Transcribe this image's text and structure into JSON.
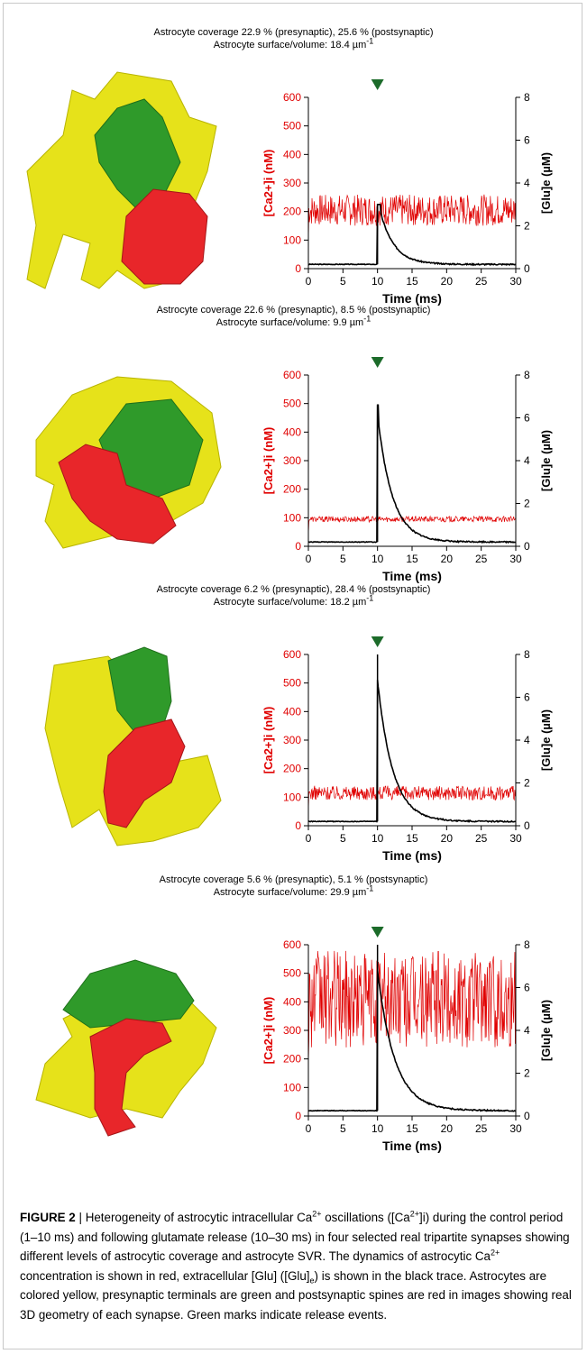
{
  "panels": [
    {
      "title_line1": "Astrocyte coverage 22.9 % (presynaptic), 25.6 % (postsynaptic)",
      "title_line2_prefix": "Astrocyte surface/volume: 18.4 ",
      "title_line2_unit": "µm",
      "title_line2_exp": "-1",
      "chart_data": {
        "type": "line",
        "xlabel": "Time (ms)",
        "ylabel_left": "[Ca2+]i (nM)",
        "ylabel_right": "[Glu]e (µM)",
        "xlim": [
          0,
          30
        ],
        "ylim_left": [
          0,
          600
        ],
        "ylim_right": [
          0,
          8
        ],
        "xticks": [
          "0",
          "5",
          "10",
          "15",
          "20",
          "25",
          "30"
        ],
        "yticks_left": [
          "0",
          "100",
          "200",
          "300",
          "400",
          "500",
          "600"
        ],
        "yticks_right": [
          "0",
          "2",
          "4",
          "6",
          "8"
        ],
        "release_event_ms": 10,
        "series": [
          {
            "axis": "left",
            "color": "#e00000",
            "baseline_nM": 205,
            "noise_amplitude_nM": 55
          },
          {
            "axis": "right",
            "color": "#000000",
            "baseline_uM": 0.2,
            "peak_uM": 3.0,
            "peak_time_ms": 10.5,
            "decay_to_baseline_ms": 17
          }
        ]
      }
    },
    {
      "title_line1": "Astrocyte coverage 22.6 % (presynaptic), 8.5 % (postsynaptic)",
      "title_line2_prefix": "Astrocyte surface/volume: 9.9 ",
      "title_line2_unit": "µm",
      "title_line2_exp": "-1",
      "chart_data": {
        "type": "line",
        "xlabel": "Time (ms)",
        "ylabel_left": "[Ca2+]i (nM)",
        "ylabel_right": "[Glu]e (µM)",
        "xlim": [
          0,
          30
        ],
        "ylim_left": [
          0,
          600
        ],
        "ylim_right": [
          0,
          8
        ],
        "xticks": [
          "0",
          "5",
          "10",
          "15",
          "20",
          "25",
          "30"
        ],
        "yticks_left": [
          "0",
          "100",
          "200",
          "300",
          "400",
          "500",
          "600"
        ],
        "yticks_right": [
          "0",
          "2",
          "4",
          "6",
          "8"
        ],
        "release_event_ms": 10,
        "series": [
          {
            "axis": "left",
            "color": "#e00000",
            "baseline_nM": 95,
            "noise_amplitude_nM": 10
          },
          {
            "axis": "right",
            "color": "#000000",
            "baseline_uM": 0.2,
            "peak_uM": 6.6,
            "peak_time_ms": 10.2,
            "decay_to_baseline_ms": 17
          }
        ]
      }
    },
    {
      "title_line1": "Astrocyte coverage 6.2 % (presynaptic), 28.4 % (postsynaptic)",
      "title_line2_prefix": "Astrocyte surface/volume: 18.2 ",
      "title_line2_unit": "µm",
      "title_line2_exp": "-1",
      "chart_data": {
        "type": "line",
        "xlabel": "Time (ms)",
        "ylabel_left": "[Ca2+]i (nM)",
        "ylabel_right": "[Glu]e (µM)",
        "xlim": [
          0,
          30
        ],
        "ylim_left": [
          0,
          600
        ],
        "ylim_right": [
          0,
          8
        ],
        "xticks": [
          "0",
          "5",
          "10",
          "15",
          "20",
          "25",
          "30"
        ],
        "yticks_left": [
          "0",
          "100",
          "200",
          "300",
          "400",
          "500",
          "600"
        ],
        "yticks_right": [
          "0",
          "2",
          "4",
          "6",
          "8"
        ],
        "release_event_ms": 10,
        "series": [
          {
            "axis": "left",
            "color": "#e00000",
            "baseline_nM": 115,
            "noise_amplitude_nM": 25
          },
          {
            "axis": "right",
            "color": "#000000",
            "baseline_uM": 0.2,
            "peak_uM": 8.0,
            "peak_time_ms": 10.0,
            "decay_to_baseline_ms": 17
          }
        ]
      }
    },
    {
      "title_line1": "Astrocyte coverage 5.6 % (presynaptic), 5.1 % (postsynaptic)",
      "title_line2_prefix": "Astrocyte surface/volume: 29.9 ",
      "title_line2_unit": "µm",
      "title_line2_exp": "-1",
      "chart_data": {
        "type": "line",
        "xlabel": "Time (ms)",
        "ylabel_left": "[Ca2+]i (nM)",
        "ylabel_right": "[Glu]e (µM)",
        "xlim": [
          0,
          30
        ],
        "ylim_left": [
          0,
          600
        ],
        "ylim_right": [
          0,
          8
        ],
        "xticks": [
          "0",
          "5",
          "10",
          "15",
          "20",
          "25",
          "30"
        ],
        "yticks_left": [
          "0",
          "100",
          "200",
          "300",
          "400",
          "500",
          "600"
        ],
        "yticks_right": [
          "0",
          "2",
          "4",
          "6",
          "8"
        ],
        "release_event_ms": 10,
        "series": [
          {
            "axis": "left",
            "color": "#e00000",
            "baseline_nM": 410,
            "noise_amplitude_nM": 170
          },
          {
            "axis": "right",
            "color": "#000000",
            "baseline_uM": 0.25,
            "peak_uM": 8.0,
            "peak_time_ms": 10.0,
            "decay_to_baseline_ms": 18
          }
        ]
      }
    }
  ],
  "colors": {
    "astrocyte": "#e6e21a",
    "presynaptic": "#2f9a2a",
    "postsynaptic": "#e8262a",
    "release_marker": "#1c6b2a",
    "ca_label": "#e00000"
  },
  "caption": {
    "label": "FIGURE 2",
    "separator": " | ",
    "part1": "Heterogeneity of astrocytic intracellular Ca",
    "sup1": "2+",
    "part2": " oscillations ([Ca",
    "sup2": "2+",
    "part3": "]i) during the control period (1–10 ms) and following glutamate release (10–30 ms) in four selected real tripartite synapses showing different levels of astrocytic coverage and astrocyte SVR. The dynamics of astrocytic Ca",
    "sup3": "2+",
    "part4": " concentration is shown in red, extracellular [Glu] ([Glu]",
    "sub4": "e",
    "part5": ") is shown in the black trace. Astrocytes are colored yellow, presynaptic terminals are green and postsynaptic spines are red in images showing real 3D geometry of each synapse. Green marks indicate release events."
  }
}
